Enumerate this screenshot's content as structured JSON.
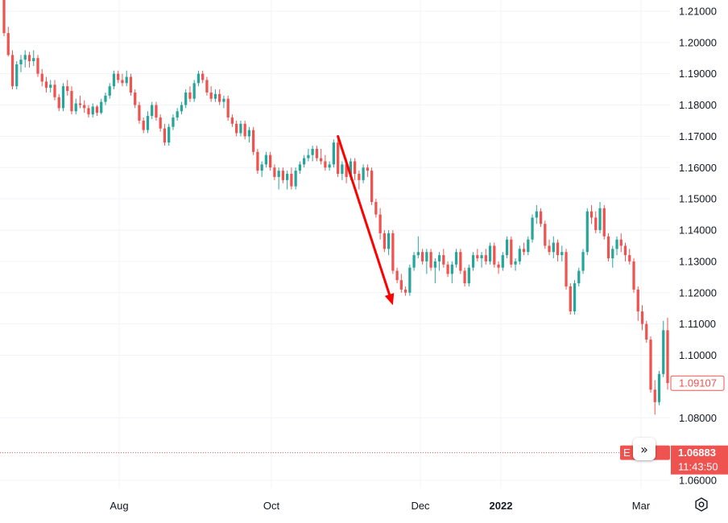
{
  "chart_data": {
    "type": "candlestick",
    "symbol_label": "E    SD",
    "x_ticks": [
      "Aug",
      "Oct",
      "Dec",
      "2022",
      "Mar"
    ],
    "y_ticks": [
      "1.21000",
      "1.20000",
      "1.19000",
      "1.18000",
      "1.17000",
      "1.16000",
      "1.15000",
      "1.14000",
      "1.13000",
      "1.12000",
      "1.11000",
      "1.10000",
      "1.09107",
      "1.08000",
      "1.06883",
      "1.06000"
    ],
    "ylim": [
      1.0575,
      1.2125
    ],
    "last_close_label": "1.09107",
    "current_price_label": "1.06883",
    "current_price": 1.06883,
    "countdown_label": "11:43:50",
    "candles": [
      [
        1.218,
        1.22,
        1.202,
        1.203
      ],
      [
        1.203,
        1.205,
        1.1955,
        1.196
      ],
      [
        1.196,
        1.1975,
        1.185,
        1.186
      ],
      [
        1.186,
        1.194,
        1.185,
        1.193
      ],
      [
        1.193,
        1.196,
        1.1905,
        1.1945
      ],
      [
        1.1945,
        1.1975,
        1.192,
        1.196
      ],
      [
        1.196,
        1.197,
        1.192,
        1.194
      ],
      [
        1.194,
        1.1975,
        1.1925,
        1.195
      ],
      [
        1.195,
        1.196,
        1.189,
        1.19
      ],
      [
        1.19,
        1.1915,
        1.186,
        1.1875
      ],
      [
        1.1875,
        1.189,
        1.184,
        1.1855
      ],
      [
        1.1855,
        1.188,
        1.184,
        1.1865
      ],
      [
        1.1865,
        1.188,
        1.1815,
        1.1825
      ],
      [
        1.1825,
        1.1835,
        1.178,
        1.179
      ],
      [
        1.179,
        1.187,
        1.178,
        1.186
      ],
      [
        1.186,
        1.188,
        1.183,
        1.1845
      ],
      [
        1.1845,
        1.186,
        1.177,
        1.178
      ],
      [
        1.178,
        1.182,
        1.177,
        1.1805
      ],
      [
        1.1805,
        1.183,
        1.179,
        1.18
      ],
      [
        1.18,
        1.1815,
        1.1775,
        1.179
      ],
      [
        1.179,
        1.18,
        1.176,
        1.177
      ],
      [
        1.177,
        1.1805,
        1.176,
        1.1795
      ],
      [
        1.1795,
        1.18,
        1.1765,
        1.1775
      ],
      [
        1.1775,
        1.182,
        1.177,
        1.181
      ],
      [
        1.181,
        1.184,
        1.18,
        1.183
      ],
      [
        1.183,
        1.187,
        1.182,
        1.186
      ],
      [
        1.186,
        1.191,
        1.185,
        1.19
      ],
      [
        1.19,
        1.191,
        1.187,
        1.188
      ],
      [
        1.188,
        1.19,
        1.186,
        1.187
      ],
      [
        1.187,
        1.191,
        1.186,
        1.189
      ],
      [
        1.189,
        1.19,
        1.183,
        1.184
      ],
      [
        1.184,
        1.185,
        1.179,
        1.18
      ],
      [
        1.18,
        1.181,
        1.174,
        1.175
      ],
      [
        1.175,
        1.176,
        1.171,
        1.172
      ],
      [
        1.172,
        1.178,
        1.171,
        1.1765
      ],
      [
        1.1765,
        1.181,
        1.1755,
        1.18
      ],
      [
        1.18,
        1.181,
        1.175,
        1.176
      ],
      [
        1.176,
        1.177,
        1.1715,
        1.1725
      ],
      [
        1.1725,
        1.174,
        1.167,
        1.168
      ],
      [
        1.168,
        1.174,
        1.167,
        1.173
      ],
      [
        1.173,
        1.177,
        1.172,
        1.176
      ],
      [
        1.176,
        1.179,
        1.175,
        1.178
      ],
      [
        1.178,
        1.181,
        1.177,
        1.18
      ],
      [
        1.18,
        1.185,
        1.179,
        1.184
      ],
      [
        1.184,
        1.186,
        1.181,
        1.182
      ],
      [
        1.182,
        1.188,
        1.181,
        1.187
      ],
      [
        1.187,
        1.191,
        1.186,
        1.19
      ],
      [
        1.19,
        1.191,
        1.187,
        1.188
      ],
      [
        1.188,
        1.189,
        1.183,
        1.184
      ],
      [
        1.184,
        1.186,
        1.181,
        1.182
      ],
      [
        1.182,
        1.185,
        1.181,
        1.1835
      ],
      [
        1.1835,
        1.185,
        1.18,
        1.181
      ],
      [
        1.181,
        1.183,
        1.179,
        1.182
      ],
      [
        1.182,
        1.183,
        1.175,
        1.176
      ],
      [
        1.176,
        1.177,
        1.173,
        1.174
      ],
      [
        1.174,
        1.175,
        1.17,
        1.171
      ],
      [
        1.171,
        1.175,
        1.17,
        1.174
      ],
      [
        1.174,
        1.175,
        1.169,
        1.17
      ],
      [
        1.17,
        1.173,
        1.168,
        1.172
      ],
      [
        1.172,
        1.173,
        1.164,
        1.165
      ],
      [
        1.165,
        1.166,
        1.158,
        1.159
      ],
      [
        1.159,
        1.162,
        1.157,
        1.161
      ],
      [
        1.161,
        1.165,
        1.16,
        1.164
      ],
      [
        1.164,
        1.165,
        1.159,
        1.16
      ],
      [
        1.16,
        1.161,
        1.156,
        1.157
      ],
      [
        1.157,
        1.16,
        1.153,
        1.159
      ],
      [
        1.159,
        1.16,
        1.155,
        1.156
      ],
      [
        1.156,
        1.159,
        1.153,
        1.158
      ],
      [
        1.158,
        1.16,
        1.153,
        1.154
      ],
      [
        1.154,
        1.16,
        1.153,
        1.159
      ],
      [
        1.159,
        1.162,
        1.158,
        1.161
      ],
      [
        1.161,
        1.164,
        1.16,
        1.163
      ],
      [
        1.163,
        1.166,
        1.162,
        1.164
      ],
      [
        1.164,
        1.167,
        1.162,
        1.166
      ],
      [
        1.166,
        1.167,
        1.162,
        1.163
      ],
      [
        1.163,
        1.166,
        1.161,
        1.162
      ],
      [
        1.162,
        1.164,
        1.159,
        1.16
      ],
      [
        1.16,
        1.162,
        1.159,
        1.161
      ],
      [
        1.161,
        1.169,
        1.16,
        1.168
      ],
      [
        1.168,
        1.169,
        1.157,
        1.158
      ],
      [
        1.158,
        1.162,
        1.156,
        1.161
      ],
      [
        1.161,
        1.163,
        1.155,
        1.157
      ],
      [
        1.157,
        1.163,
        1.156,
        1.162
      ],
      [
        1.162,
        1.163,
        1.156,
        1.158
      ],
      [
        1.158,
        1.159,
        1.153,
        1.156
      ],
      [
        1.156,
        1.161,
        1.155,
        1.16
      ],
      [
        1.16,
        1.161,
        1.157,
        1.159
      ],
      [
        1.159,
        1.16,
        1.148,
        1.149
      ],
      [
        1.149,
        1.15,
        1.144,
        1.145
      ],
      [
        1.145,
        1.147,
        1.137,
        1.139
      ],
      [
        1.139,
        1.14,
        1.133,
        1.134
      ],
      [
        1.134,
        1.14,
        1.132,
        1.139
      ],
      [
        1.139,
        1.14,
        1.126,
        1.127
      ],
      [
        1.127,
        1.128,
        1.123,
        1.124
      ],
      [
        1.124,
        1.126,
        1.12,
        1.121
      ],
      [
        1.121,
        1.122,
        1.119,
        1.12
      ],
      [
        1.12,
        1.129,
        1.119,
        1.128
      ],
      [
        1.128,
        1.133,
        1.127,
        1.132
      ],
      [
        1.132,
        1.138,
        1.131,
        1.133
      ],
      [
        1.133,
        1.134,
        1.129,
        1.13
      ],
      [
        1.13,
        1.134,
        1.126,
        1.133
      ],
      [
        1.133,
        1.134,
        1.127,
        1.128
      ],
      [
        1.128,
        1.131,
        1.123,
        1.13
      ],
      [
        1.13,
        1.133,
        1.127,
        1.132
      ],
      [
        1.132,
        1.134,
        1.128,
        1.129
      ],
      [
        1.129,
        1.13,
        1.125,
        1.126
      ],
      [
        1.126,
        1.13,
        1.123,
        1.129
      ],
      [
        1.129,
        1.134,
        1.128,
        1.133
      ],
      [
        1.133,
        1.134,
        1.126,
        1.127
      ],
      [
        1.127,
        1.128,
        1.122,
        1.123
      ],
      [
        1.123,
        1.129,
        1.122,
        1.128
      ],
      [
        1.128,
        1.133,
        1.127,
        1.132
      ],
      [
        1.132,
        1.134,
        1.13,
        1.131
      ],
      [
        1.131,
        1.133,
        1.128,
        1.132
      ],
      [
        1.132,
        1.134,
        1.129,
        1.13
      ],
      [
        1.13,
        1.136,
        1.129,
        1.135
      ],
      [
        1.135,
        1.136,
        1.128,
        1.129
      ],
      [
        1.129,
        1.13,
        1.126,
        1.128
      ],
      [
        1.128,
        1.133,
        1.127,
        1.132
      ],
      [
        1.132,
        1.138,
        1.131,
        1.137
      ],
      [
        1.137,
        1.138,
        1.128,
        1.129
      ],
      [
        1.129,
        1.131,
        1.127,
        1.13
      ],
      [
        1.13,
        1.135,
        1.129,
        1.134
      ],
      [
        1.134,
        1.136,
        1.132,
        1.133
      ],
      [
        1.133,
        1.138,
        1.132,
        1.137
      ],
      [
        1.137,
        1.145,
        1.136,
        1.144
      ],
      [
        1.144,
        1.148,
        1.142,
        1.146
      ],
      [
        1.146,
        1.147,
        1.141,
        1.142
      ],
      [
        1.142,
        1.143,
        1.134,
        1.135
      ],
      [
        1.135,
        1.137,
        1.132,
        1.133
      ],
      [
        1.133,
        1.138,
        1.131,
        1.136
      ],
      [
        1.136,
        1.137,
        1.13,
        1.132
      ],
      [
        1.132,
        1.135,
        1.13,
        1.133
      ],
      [
        1.133,
        1.134,
        1.121,
        1.122
      ],
      [
        1.122,
        1.123,
        1.113,
        1.114
      ],
      [
        1.114,
        1.124,
        1.113,
        1.123
      ],
      [
        1.123,
        1.128,
        1.122,
        1.127
      ],
      [
        1.127,
        1.134,
        1.126,
        1.133
      ],
      [
        1.133,
        1.147,
        1.132,
        1.146
      ],
      [
        1.146,
        1.148,
        1.142,
        1.144
      ],
      [
        1.144,
        1.146,
        1.139,
        1.14
      ],
      [
        1.14,
        1.149,
        1.139,
        1.147
      ],
      [
        1.147,
        1.148,
        1.137,
        1.138
      ],
      [
        1.138,
        1.139,
        1.13,
        1.131
      ],
      [
        1.131,
        1.135,
        1.128,
        1.134
      ],
      [
        1.134,
        1.138,
        1.132,
        1.137
      ],
      [
        1.137,
        1.139,
        1.133,
        1.135
      ],
      [
        1.135,
        1.136,
        1.13,
        1.132
      ],
      [
        1.132,
        1.134,
        1.129,
        1.13
      ],
      [
        1.13,
        1.131,
        1.12,
        1.121
      ],
      [
        1.121,
        1.122,
        1.111,
        1.114
      ],
      [
        1.114,
        1.116,
        1.108,
        1.11
      ],
      [
        1.11,
        1.111,
        1.104,
        1.105
      ],
      [
        1.105,
        1.106,
        1.088,
        1.089
      ],
      [
        1.089,
        1.092,
        1.081,
        1.085
      ],
      [
        1.085,
        1.095,
        1.084,
        1.094
      ],
      [
        1.094,
        1.111,
        1.093,
        1.108
      ],
      [
        1.108,
        1.112,
        1.089,
        1.0911
      ]
    ],
    "annotation_arrow": {
      "from": [
        79,
        1.17
      ],
      "to": [
        92,
        1.116
      ]
    },
    "colors": {
      "up": "#26a69a",
      "down": "#ef5350",
      "arrow": "#ff0000",
      "grid": "#f0f3fa",
      "price_line": "#ef5350"
    }
  }
}
